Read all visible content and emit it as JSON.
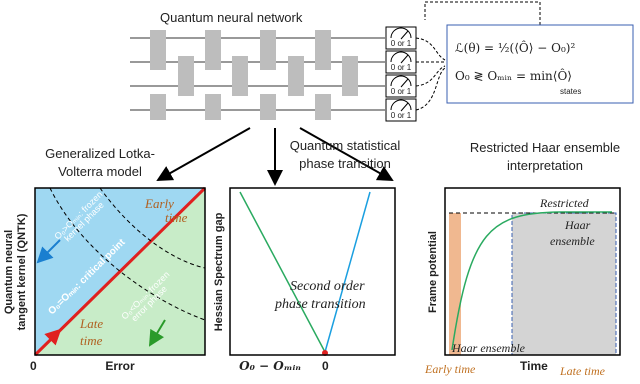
{
  "circuit": {
    "title": "Quantum neural network",
    "meters": [
      "0 or 1",
      "0 or 1",
      "0 or 1",
      "0 or 1"
    ]
  },
  "loss": {
    "line1": "ℒ(θ) = ½(⟨Ô⟩ − O₀)²",
    "line2": "O₀ ≷ Oₘᵢₙ = min⟨Ô⟩",
    "line2_sub": "states"
  },
  "branches": [
    {
      "caption": [
        "Generalized Lotka-",
        "Volterra model"
      ]
    },
    {
      "caption": [
        "Quantum statistical",
        "phase transition"
      ]
    },
    {
      "caption": [
        "Restricted Haar ensemble",
        "interpretation"
      ]
    }
  ],
  "panel_qntk": {
    "ylabel": [
      "Quantum neural",
      "tangent kernel (QNTK)"
    ],
    "xlabel": "Error",
    "origin": "0",
    "early": [
      "Early",
      "time"
    ],
    "late": [
      "Late",
      "time"
    ],
    "frozen_kernel": [
      "O₀>Oₘᵢₙ: frozen",
      "kernel phase"
    ],
    "critical": "O₀=Oₘᵢₙ: critical point",
    "frozen_error": [
      "O₀<Oₘᵢₙ: frozen",
      "error phase"
    ]
  },
  "panel_hessian": {
    "ylabel": "Hessian Spectrum gap",
    "note": [
      "Second order",
      "phase transition"
    ],
    "xlabel": "O₀ − Oₘᵢₙ",
    "origin": "0"
  },
  "panel_frame": {
    "ylabel": "Frame potential",
    "restricted": [
      "Restricted",
      "Haar",
      "ensemble"
    ],
    "haar": "Haar ensemble",
    "xlabel": "Time",
    "early": "Early time",
    "late": "Late time"
  }
}
